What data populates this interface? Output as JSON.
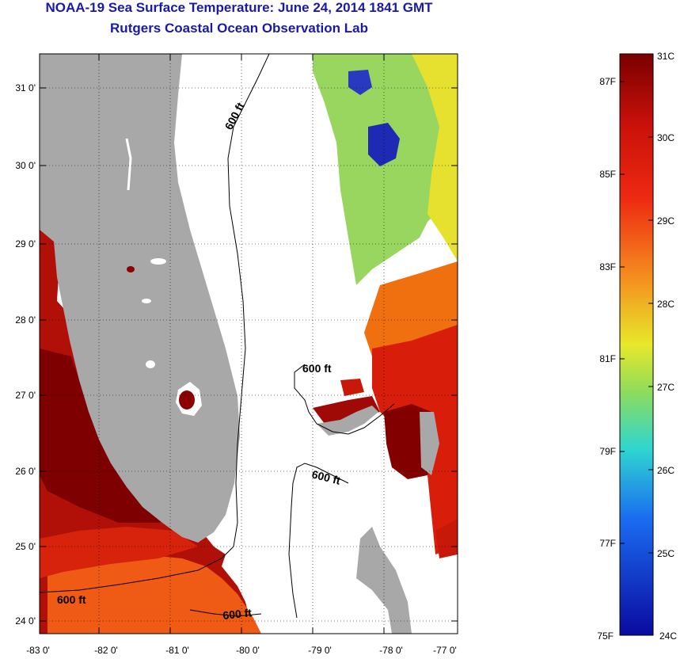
{
  "title": "NOAA-19 Sea Surface Temperature:  June 24, 2014 1841 GMT",
  "subtitle": "Rutgers Coastal Ocean Observation Lab",
  "map": {
    "lat_ticks": [
      "31 0'",
      "30 0'",
      "29 0'",
      "28 0'",
      "27 0'",
      "26 0'",
      "25 0'",
      "24 0'"
    ],
    "lon_ticks": [
      "-83 0'",
      "-82 0'",
      "-81 0'",
      "-80 0'",
      "-79 0'",
      "-78 0'",
      "-77 0'"
    ],
    "contour_labels": [
      "600 ft",
      "600 ft",
      "600 ft",
      "600 ft",
      "600 ft"
    ],
    "colors": {
      "land": "#a8a8a8",
      "no_data": "#ffffff",
      "warm": "#8b0000",
      "hot": "#d71d0c",
      "orange": "#f27418",
      "yellow": "#e9e82d",
      "green": "#8cd660",
      "blue": "#1f1fb0"
    }
  },
  "colorbar": {
    "celsius": [
      "31C",
      "30C",
      "29C",
      "28C",
      "27C",
      "26C",
      "25C",
      "24C"
    ],
    "fahrenheit": [
      "87F",
      "85F",
      "83F",
      "81F",
      "79F",
      "77F",
      "75F"
    ]
  }
}
